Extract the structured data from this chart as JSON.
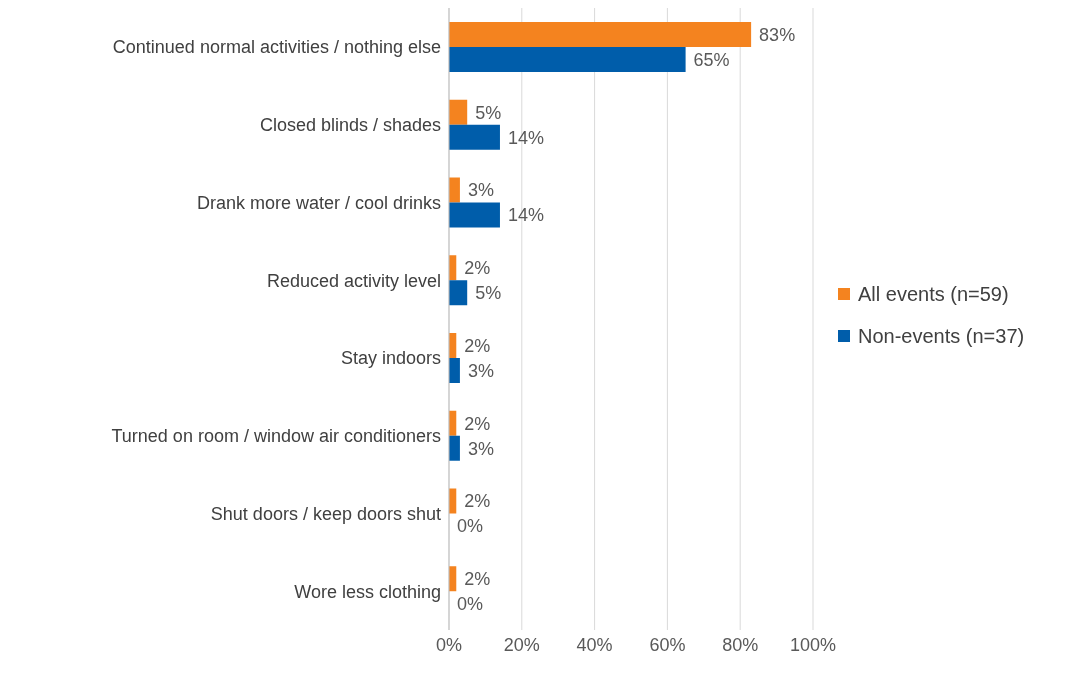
{
  "chart_data": {
    "type": "bar",
    "orientation": "horizontal",
    "categories": [
      "Continued normal activities / nothing else",
      "Closed blinds / shades",
      "Drank more water / cool drinks",
      "Reduced activity level",
      "Stay indoors",
      "Turned on room / window air conditioners",
      "Shut doors / keep doors shut",
      "Wore less clothing"
    ],
    "series": [
      {
        "name": "All events (n=59)",
        "color": "#f4831f",
        "values": [
          83,
          5,
          3,
          2,
          2,
          2,
          2,
          2
        ],
        "value_labels": [
          "83%",
          "5%",
          "3%",
          "2%",
          "2%",
          "2%",
          "2%",
          "2%"
        ]
      },
      {
        "name": "Non-events (n=37)",
        "color": "#005daa",
        "values": [
          65,
          14,
          14,
          5,
          3,
          3,
          0,
          0
        ],
        "value_labels": [
          "65%",
          "14%",
          "14%",
          "5%",
          "3%",
          "3%",
          "0%",
          "0%"
        ]
      }
    ],
    "xlim": [
      0,
      100
    ],
    "xticks": [
      {
        "value": 0,
        "label": "0%"
      },
      {
        "value": 20,
        "label": "20%"
      },
      {
        "value": 40,
        "label": "40%"
      },
      {
        "value": 60,
        "label": "60%"
      },
      {
        "value": 80,
        "label": "80%"
      },
      {
        "value": 100,
        "label": "100%"
      }
    ],
    "grid": "x",
    "legend": "right"
  }
}
